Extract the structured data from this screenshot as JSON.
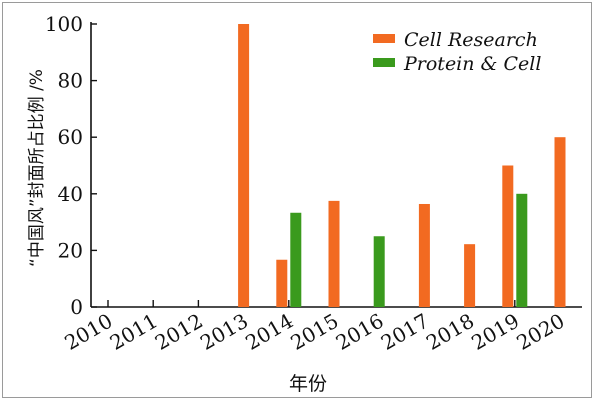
{
  "chart_data": {
    "type": "bar",
    "categories": [
      "2010",
      "2011",
      "2012",
      "2013",
      "2014",
      "2015",
      "2016",
      "2017",
      "2018",
      "2019",
      "2020"
    ],
    "series": [
      {
        "name": "Cell Research",
        "color": "#f26a21",
        "values": [
          0,
          0,
          0,
          100,
          16.7,
          37.5,
          0,
          36.4,
          22.2,
          50,
          60
        ]
      },
      {
        "name": "Protein & Cell",
        "color": "#3a9a1d",
        "values": [
          0,
          0,
          0,
          0,
          33.3,
          0,
          25,
          0,
          0,
          40,
          0
        ]
      }
    ],
    "xlabel": "年份",
    "ylabel": "“中国风”封面所占比例 /%",
    "ylim": [
      0,
      100
    ],
    "yticks": [
      "0",
      "20",
      "40",
      "60",
      "80",
      "100"
    ],
    "legend_position": "top-right",
    "grid": false
  }
}
